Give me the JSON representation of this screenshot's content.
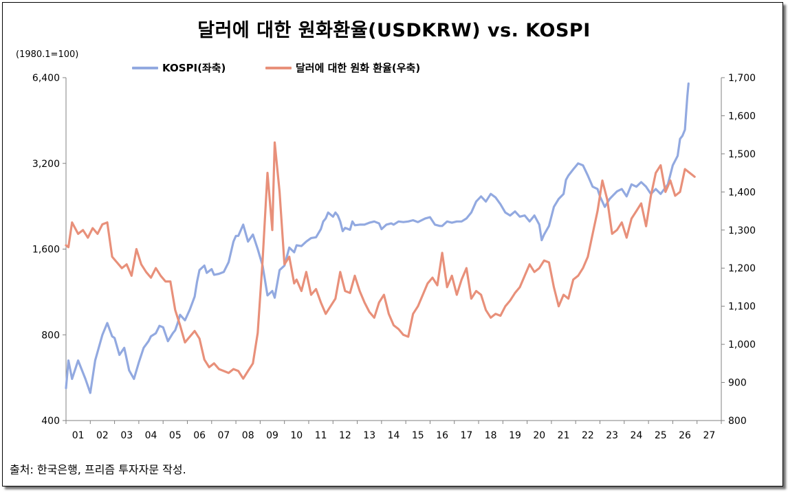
{
  "chart_data": {
    "type": "line",
    "title": "달러에 대한 원화환율(USDKRW) vs. KOSPI",
    "left_unit": "(1980.1=100)",
    "source": "출처: 한국은행, 프리즘 투자자문 작성.",
    "grid": false,
    "legend_placement": "top-center",
    "x_range": [
      0.5,
      27.5
    ],
    "x_ticks": [
      "01",
      "02",
      "03",
      "04",
      "05",
      "06",
      "07",
      "08",
      "09",
      "10",
      "11",
      "12",
      "13",
      "14",
      "15",
      "16",
      "17",
      "18",
      "19",
      "20",
      "21",
      "22",
      "23",
      "24",
      "25",
      "26",
      "27"
    ],
    "y_left": {
      "scale": "log2",
      "range": [
        400,
        6400
      ],
      "ticks": [
        400,
        800,
        1600,
        3200,
        6400
      ],
      "tick_labels": [
        "400",
        "800",
        "1,600",
        "3,200",
        "6,400"
      ]
    },
    "y_right": {
      "scale": "linear",
      "range": [
        800,
        1700
      ],
      "ticks": [
        800,
        900,
        1000,
        1100,
        1200,
        1300,
        1400,
        1500,
        1600,
        1700
      ],
      "tick_labels": [
        "800",
        "900",
        "1,000",
        "1,100",
        "1,200",
        "1,300",
        "1,400",
        "1,500",
        "1,600",
        "1,700"
      ]
    },
    "series": [
      {
        "name": "KOSPI(좌축)",
        "axis": "left",
        "color": "#92A9E0",
        "points": [
          [
            0.5,
            520
          ],
          [
            0.6,
            650
          ],
          [
            0.75,
            560
          ],
          [
            1.0,
            650
          ],
          [
            1.3,
            560
          ],
          [
            1.5,
            500
          ],
          [
            1.7,
            650
          ],
          [
            2.0,
            800
          ],
          [
            2.2,
            880
          ],
          [
            2.4,
            790
          ],
          [
            2.5,
            780
          ],
          [
            2.7,
            680
          ],
          [
            2.9,
            720
          ],
          [
            3.1,
            600
          ],
          [
            3.3,
            560
          ],
          [
            3.5,
            640
          ],
          [
            3.7,
            720
          ],
          [
            3.9,
            760
          ],
          [
            4.0,
            790
          ],
          [
            4.2,
            810
          ],
          [
            4.35,
            860
          ],
          [
            4.5,
            850
          ],
          [
            4.7,
            760
          ],
          [
            4.9,
            810
          ],
          [
            5.0,
            830
          ],
          [
            5.1,
            880
          ],
          [
            5.2,
            940
          ],
          [
            5.4,
            900
          ],
          [
            5.6,
            980
          ],
          [
            5.8,
            1090
          ],
          [
            5.9,
            1230
          ],
          [
            6.0,
            1350
          ],
          [
            6.2,
            1400
          ],
          [
            6.3,
            1320
          ],
          [
            6.5,
            1360
          ],
          [
            6.6,
            1300
          ],
          [
            6.8,
            1310
          ],
          [
            7.0,
            1330
          ],
          [
            7.2,
            1440
          ],
          [
            7.4,
            1700
          ],
          [
            7.5,
            1780
          ],
          [
            7.6,
            1780
          ],
          [
            7.8,
            1950
          ],
          [
            8.0,
            1700
          ],
          [
            8.2,
            1800
          ],
          [
            8.4,
            1600
          ],
          [
            8.6,
            1400
          ],
          [
            8.8,
            1100
          ],
          [
            9.0,
            1140
          ],
          [
            9.1,
            1080
          ],
          [
            9.3,
            1350
          ],
          [
            9.5,
            1400
          ],
          [
            9.7,
            1620
          ],
          [
            9.9,
            1560
          ],
          [
            10.0,
            1650
          ],
          [
            10.2,
            1640
          ],
          [
            10.4,
            1700
          ],
          [
            10.6,
            1750
          ],
          [
            10.8,
            1760
          ],
          [
            11.0,
            1880
          ],
          [
            11.1,
            2000
          ],
          [
            11.2,
            2050
          ],
          [
            11.3,
            2150
          ],
          [
            11.5,
            2080
          ],
          [
            11.6,
            2150
          ],
          [
            11.7,
            2100
          ],
          [
            11.8,
            2000
          ],
          [
            11.9,
            1850
          ],
          [
            12.0,
            1900
          ],
          [
            12.2,
            1870
          ],
          [
            12.3,
            2000
          ],
          [
            12.4,
            1940
          ],
          [
            12.6,
            1950
          ],
          [
            12.8,
            1950
          ],
          [
            13.0,
            1980
          ],
          [
            13.2,
            2000
          ],
          [
            13.4,
            1970
          ],
          [
            13.5,
            1880
          ],
          [
            13.7,
            1950
          ],
          [
            13.9,
            1970
          ],
          [
            14.0,
            1950
          ],
          [
            14.2,
            2000
          ],
          [
            14.4,
            1990
          ],
          [
            14.6,
            2000
          ],
          [
            14.8,
            2020
          ],
          [
            15.0,
            1990
          ],
          [
            15.3,
            2050
          ],
          [
            15.5,
            2070
          ],
          [
            15.7,
            1950
          ],
          [
            15.9,
            1930
          ],
          [
            16.0,
            1930
          ],
          [
            16.2,
            2000
          ],
          [
            16.4,
            1980
          ],
          [
            16.6,
            2000
          ],
          [
            16.8,
            2000
          ],
          [
            17.0,
            2050
          ],
          [
            17.2,
            2150
          ],
          [
            17.4,
            2350
          ],
          [
            17.6,
            2450
          ],
          [
            17.8,
            2350
          ],
          [
            18.0,
            2500
          ],
          [
            18.2,
            2430
          ],
          [
            18.4,
            2300
          ],
          [
            18.6,
            2150
          ],
          [
            18.8,
            2100
          ],
          [
            19.0,
            2170
          ],
          [
            19.2,
            2080
          ],
          [
            19.4,
            2100
          ],
          [
            19.6,
            2000
          ],
          [
            19.8,
            2100
          ],
          [
            20.0,
            1950
          ],
          [
            20.1,
            1720
          ],
          [
            20.2,
            1800
          ],
          [
            20.4,
            1930
          ],
          [
            20.6,
            2250
          ],
          [
            20.8,
            2400
          ],
          [
            21.0,
            2500
          ],
          [
            21.1,
            2800
          ],
          [
            21.2,
            2900
          ],
          [
            21.4,
            3050
          ],
          [
            21.6,
            3200
          ],
          [
            21.8,
            3150
          ],
          [
            22.0,
            2900
          ],
          [
            22.2,
            2650
          ],
          [
            22.4,
            2600
          ],
          [
            22.5,
            2450
          ],
          [
            22.7,
            2250
          ],
          [
            22.9,
            2400
          ],
          [
            23.0,
            2450
          ],
          [
            23.2,
            2550
          ],
          [
            23.4,
            2600
          ],
          [
            23.6,
            2450
          ],
          [
            23.8,
            2700
          ],
          [
            24.0,
            2650
          ],
          [
            24.2,
            2750
          ],
          [
            24.4,
            2650
          ],
          [
            24.6,
            2500
          ],
          [
            24.8,
            2600
          ],
          [
            25.0,
            2500
          ],
          [
            25.3,
            2700
          ],
          [
            25.5,
            3150
          ],
          [
            25.7,
            3400
          ],
          [
            25.8,
            3900
          ],
          [
            25.9,
            4000
          ],
          [
            26.0,
            4200
          ],
          [
            26.05,
            4800
          ],
          [
            26.1,
            5500
          ],
          [
            26.15,
            6100
          ]
        ]
      },
      {
        "name": "달러에 대한 원화 환율(우축)",
        "axis": "right",
        "color": "#E8907A",
        "points": [
          [
            0.5,
            1260
          ],
          [
            0.6,
            1255
          ],
          [
            0.75,
            1320
          ],
          [
            1.0,
            1290
          ],
          [
            1.2,
            1300
          ],
          [
            1.4,
            1280
          ],
          [
            1.6,
            1305
          ],
          [
            1.8,
            1290
          ],
          [
            2.0,
            1315
          ],
          [
            2.2,
            1320
          ],
          [
            2.4,
            1230
          ],
          [
            2.6,
            1215
          ],
          [
            2.8,
            1200
          ],
          [
            3.0,
            1210
          ],
          [
            3.2,
            1180
          ],
          [
            3.4,
            1250
          ],
          [
            3.6,
            1210
          ],
          [
            3.8,
            1190
          ],
          [
            4.0,
            1175
          ],
          [
            4.2,
            1200
          ],
          [
            4.4,
            1180
          ],
          [
            4.6,
            1165
          ],
          [
            4.8,
            1165
          ],
          [
            5.0,
            1090
          ],
          [
            5.2,
            1050
          ],
          [
            5.4,
            1005
          ],
          [
            5.6,
            1020
          ],
          [
            5.8,
            1035
          ],
          [
            6.0,
            1015
          ],
          [
            6.2,
            960
          ],
          [
            6.4,
            940
          ],
          [
            6.6,
            950
          ],
          [
            6.8,
            935
          ],
          [
            7.0,
            930
          ],
          [
            7.2,
            925
          ],
          [
            7.4,
            935
          ],
          [
            7.6,
            930
          ],
          [
            7.8,
            910
          ],
          [
            8.0,
            930
          ],
          [
            8.2,
            950
          ],
          [
            8.4,
            1030
          ],
          [
            8.6,
            1220
          ],
          [
            8.8,
            1450
          ],
          [
            9.0,
            1300
          ],
          [
            9.1,
            1530
          ],
          [
            9.3,
            1400
          ],
          [
            9.5,
            1210
          ],
          [
            9.7,
            1230
          ],
          [
            9.9,
            1160
          ],
          [
            10.0,
            1170
          ],
          [
            10.2,
            1140
          ],
          [
            10.4,
            1190
          ],
          [
            10.6,
            1130
          ],
          [
            10.8,
            1145
          ],
          [
            11.0,
            1110
          ],
          [
            11.2,
            1080
          ],
          [
            11.4,
            1100
          ],
          [
            11.6,
            1120
          ],
          [
            11.8,
            1190
          ],
          [
            12.0,
            1140
          ],
          [
            12.2,
            1135
          ],
          [
            12.4,
            1180
          ],
          [
            12.6,
            1140
          ],
          [
            12.8,
            1110
          ],
          [
            13.0,
            1085
          ],
          [
            13.2,
            1070
          ],
          [
            13.4,
            1110
          ],
          [
            13.6,
            1130
          ],
          [
            13.8,
            1080
          ],
          [
            14.0,
            1050
          ],
          [
            14.2,
            1040
          ],
          [
            14.4,
            1025
          ],
          [
            14.6,
            1020
          ],
          [
            14.8,
            1080
          ],
          [
            15.0,
            1100
          ],
          [
            15.2,
            1130
          ],
          [
            15.4,
            1160
          ],
          [
            15.6,
            1175
          ],
          [
            15.8,
            1155
          ],
          [
            16.0,
            1240
          ],
          [
            16.2,
            1150
          ],
          [
            16.4,
            1180
          ],
          [
            16.6,
            1130
          ],
          [
            16.8,
            1170
          ],
          [
            17.0,
            1200
          ],
          [
            17.2,
            1120
          ],
          [
            17.4,
            1140
          ],
          [
            17.6,
            1130
          ],
          [
            17.8,
            1090
          ],
          [
            18.0,
            1070
          ],
          [
            18.2,
            1080
          ],
          [
            18.4,
            1075
          ],
          [
            18.6,
            1100
          ],
          [
            18.8,
            1115
          ],
          [
            19.0,
            1135
          ],
          [
            19.2,
            1150
          ],
          [
            19.4,
            1180
          ],
          [
            19.6,
            1210
          ],
          [
            19.8,
            1190
          ],
          [
            20.0,
            1200
          ],
          [
            20.2,
            1220
          ],
          [
            20.4,
            1215
          ],
          [
            20.6,
            1150
          ],
          [
            20.8,
            1100
          ],
          [
            21.0,
            1130
          ],
          [
            21.2,
            1120
          ],
          [
            21.4,
            1170
          ],
          [
            21.6,
            1180
          ],
          [
            21.8,
            1200
          ],
          [
            22.0,
            1230
          ],
          [
            22.2,
            1290
          ],
          [
            22.4,
            1350
          ],
          [
            22.6,
            1430
          ],
          [
            22.8,
            1380
          ],
          [
            23.0,
            1290
          ],
          [
            23.2,
            1300
          ],
          [
            23.4,
            1320
          ],
          [
            23.6,
            1280
          ],
          [
            23.8,
            1330
          ],
          [
            24.0,
            1350
          ],
          [
            24.2,
            1370
          ],
          [
            24.4,
            1310
          ],
          [
            24.6,
            1390
          ],
          [
            24.8,
            1450
          ],
          [
            25.0,
            1470
          ],
          [
            25.2,
            1400
          ],
          [
            25.4,
            1430
          ],
          [
            25.6,
            1390
          ],
          [
            25.8,
            1400
          ],
          [
            26.0,
            1460
          ],
          [
            26.2,
            1450
          ],
          [
            26.4,
            1440
          ]
        ]
      }
    ]
  }
}
